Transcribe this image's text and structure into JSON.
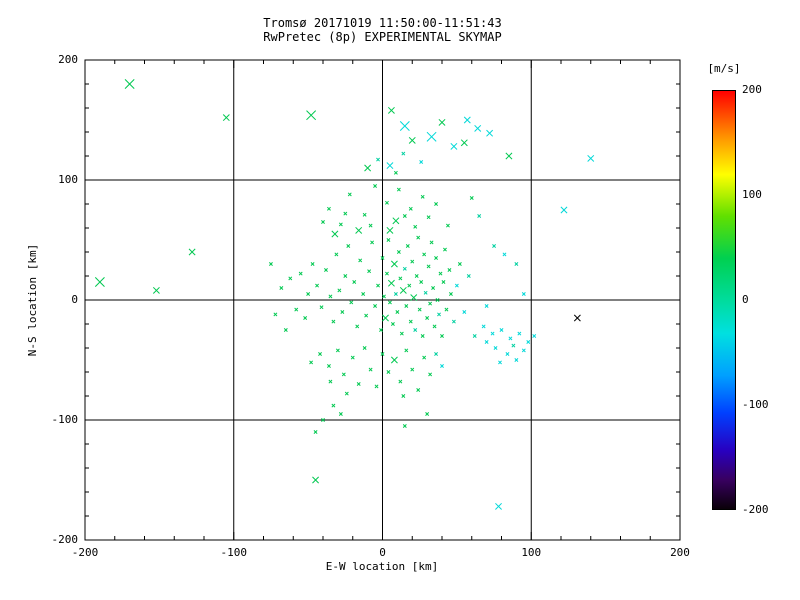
{
  "title": {
    "line1": "Tromsø 20171019 11:50:00-11:51:43",
    "line2": "RwPretec (8p) EXPERIMENTAL SKYMAP"
  },
  "axes": {
    "x": {
      "label": "E-W location [km]",
      "range": [
        -200,
        200
      ],
      "ticks": [
        -200,
        -100,
        0,
        100,
        200
      ],
      "minor_step": 20
    },
    "y": {
      "label": "N-S location [km]",
      "range": [
        -200,
        200
      ],
      "ticks": [
        -200,
        -100,
        0,
        100,
        200
      ],
      "minor_step": 20
    },
    "grid_lines": [
      -100,
      0,
      100
    ]
  },
  "colorbar": {
    "label": "[m/s]",
    "range": [
      -200,
      200
    ],
    "ticks": [
      200,
      100,
      0,
      -100,
      -200
    ],
    "stops": [
      [
        "#ff0000",
        0
      ],
      [
        "#ffa000",
        12
      ],
      [
        "#ffff00",
        20
      ],
      [
        "#60e000",
        30
      ],
      [
        "#00d050",
        40
      ],
      [
        "#00dc9c",
        50
      ],
      [
        "#00e0e0",
        58
      ],
      [
        "#00a0ff",
        68
      ],
      [
        "#0040ff",
        77
      ],
      [
        "#2800c0",
        86
      ],
      [
        "#380060",
        93
      ],
      [
        "#0a0008",
        100
      ]
    ]
  },
  "chart_data": {
    "type": "scatter",
    "marker": "x",
    "title": "Tromsø 20171019 11:50:00-11:51:43",
    "subtitle": "RwPretec (8p) EXPERIMENTAL SKYMAP",
    "xlabel": "E-W location [km]",
    "ylabel": "N-S location [km]",
    "xlim": [
      -200,
      200
    ],
    "ylim": [
      -200,
      200
    ],
    "colorbar_units": "m/s",
    "palette": {
      "g": "#00C850",
      "t": "#00D0A0",
      "c": "#00D8D8",
      "k": "#000000"
    },
    "points": [
      [
        -170,
        180,
        "g",
        3
      ],
      [
        -105,
        152,
        "g",
        2
      ],
      [
        -48,
        154,
        "g",
        3
      ],
      [
        6,
        158,
        "g",
        2
      ],
      [
        15,
        145,
        "c",
        3
      ],
      [
        20,
        133,
        "g",
        2
      ],
      [
        33,
        136,
        "c",
        3
      ],
      [
        40,
        148,
        "g",
        2
      ],
      [
        48,
        128,
        "c",
        2
      ],
      [
        55,
        131,
        "g",
        2
      ],
      [
        57,
        150,
        "c",
        2
      ],
      [
        64,
        143,
        "c",
        2
      ],
      [
        72,
        139,
        "c",
        2
      ],
      [
        85,
        120,
        "g",
        2
      ],
      [
        140,
        118,
        "c",
        2
      ],
      [
        122,
        75,
        "c",
        2
      ],
      [
        -10,
        110,
        "g",
        2
      ],
      [
        -3,
        117,
        "t",
        1
      ],
      [
        5,
        112,
        "c",
        2
      ],
      [
        9,
        106,
        "g",
        1
      ],
      [
        14,
        122,
        "t",
        1
      ],
      [
        26,
        115,
        "c",
        1
      ],
      [
        -190,
        15,
        "g",
        3
      ],
      [
        -152,
        8,
        "g",
        2
      ],
      [
        -128,
        40,
        "g",
        2
      ],
      [
        131,
        -15,
        "k",
        2
      ],
      [
        -45,
        -150,
        "g",
        2
      ],
      [
        78,
        -172,
        "c",
        2
      ],
      [
        -36,
        76,
        "g",
        1
      ],
      [
        -22,
        88,
        "g",
        1
      ],
      [
        -12,
        71,
        "g",
        1
      ],
      [
        -5,
        95,
        "g",
        1
      ],
      [
        3,
        81,
        "g",
        1
      ],
      [
        11,
        92,
        "g",
        1
      ],
      [
        19,
        76,
        "g",
        1
      ],
      [
        27,
        86,
        "g",
        1
      ],
      [
        -28,
        63,
        "g",
        1
      ],
      [
        9,
        66,
        "g",
        2
      ],
      [
        31,
        69,
        "g",
        1
      ],
      [
        -16,
        58,
        "g",
        2
      ],
      [
        -32,
        55,
        "g",
        2
      ],
      [
        22,
        61,
        "g",
        1
      ],
      [
        5,
        58,
        "g",
        2
      ],
      [
        -8,
        62,
        "g",
        1
      ],
      [
        15,
        70,
        "g",
        1
      ],
      [
        -25,
        72,
        "g",
        1
      ],
      [
        36,
        80,
        "g",
        1
      ],
      [
        -40,
        65,
        "g",
        1
      ],
      [
        60,
        85,
        "g",
        1
      ],
      [
        65,
        70,
        "t",
        1
      ],
      [
        44,
        62,
        "g",
        1
      ],
      [
        -44,
        12,
        "g",
        1
      ],
      [
        -41,
        -6,
        "g",
        1
      ],
      [
        -38,
        25,
        "g",
        1
      ],
      [
        -35,
        3,
        "g",
        1
      ],
      [
        -33,
        -18,
        "g",
        1
      ],
      [
        -31,
        38,
        "g",
        1
      ],
      [
        -29,
        8,
        "g",
        1
      ],
      [
        -27,
        -10,
        "g",
        1
      ],
      [
        -25,
        20,
        "g",
        1
      ],
      [
        -23,
        45,
        "g",
        1
      ],
      [
        -21,
        -2,
        "g",
        1
      ],
      [
        -19,
        15,
        "g",
        1
      ],
      [
        -17,
        -22,
        "g",
        1
      ],
      [
        -15,
        33,
        "g",
        1
      ],
      [
        -13,
        5,
        "g",
        1
      ],
      [
        -11,
        -13,
        "g",
        1
      ],
      [
        -9,
        24,
        "g",
        1
      ],
      [
        -7,
        48,
        "g",
        1
      ],
      [
        -5,
        -5,
        "g",
        1
      ],
      [
        -3,
        12,
        "g",
        1
      ],
      [
        -1,
        -25,
        "g",
        1
      ],
      [
        0,
        35,
        "g",
        1
      ],
      [
        1,
        3,
        "g",
        1
      ],
      [
        2,
        -15,
        "g",
        2
      ],
      [
        3,
        22,
        "g",
        1
      ],
      [
        4,
        50,
        "g",
        1
      ],
      [
        5,
        -2,
        "g",
        1
      ],
      [
        6,
        14,
        "g",
        2
      ],
      [
        7,
        -20,
        "g",
        1
      ],
      [
        8,
        30,
        "g",
        2
      ],
      [
        9,
        5,
        "t",
        1
      ],
      [
        10,
        -10,
        "g",
        1
      ],
      [
        11,
        40,
        "g",
        1
      ],
      [
        12,
        18,
        "g",
        1
      ],
      [
        13,
        -28,
        "g",
        1
      ],
      [
        14,
        8,
        "g",
        2
      ],
      [
        15,
        26,
        "t",
        1
      ],
      [
        16,
        -5,
        "g",
        1
      ],
      [
        17,
        45,
        "g",
        1
      ],
      [
        18,
        12,
        "g",
        1
      ],
      [
        19,
        -18,
        "g",
        1
      ],
      [
        20,
        32,
        "g",
        1
      ],
      [
        21,
        2,
        "g",
        2
      ],
      [
        22,
        -25,
        "t",
        1
      ],
      [
        23,
        20,
        "g",
        1
      ],
      [
        24,
        52,
        "g",
        1
      ],
      [
        25,
        -8,
        "g",
        1
      ],
      [
        26,
        15,
        "g",
        1
      ],
      [
        27,
        -30,
        "g",
        1
      ],
      [
        28,
        38,
        "g",
        1
      ],
      [
        29,
        6,
        "t",
        1
      ],
      [
        30,
        -15,
        "g",
        1
      ],
      [
        31,
        28,
        "g",
        1
      ],
      [
        32,
        -3,
        "g",
        1
      ],
      [
        33,
        48,
        "g",
        1
      ],
      [
        34,
        10,
        "g",
        1
      ],
      [
        35,
        -22,
        "g",
        1
      ],
      [
        36,
        35,
        "g",
        1
      ],
      [
        37,
        0,
        "g",
        1
      ],
      [
        38,
        -12,
        "t",
        1
      ],
      [
        39,
        22,
        "g",
        1
      ],
      [
        40,
        -30,
        "g",
        1
      ],
      [
        41,
        15,
        "g",
        1
      ],
      [
        42,
        42,
        "g",
        1
      ],
      [
        43,
        -8,
        "g",
        1
      ],
      [
        45,
        25,
        "g",
        1
      ],
      [
        46,
        5,
        "g",
        1
      ],
      [
        48,
        -18,
        "t",
        1
      ],
      [
        50,
        12,
        "c",
        1
      ],
      [
        52,
        30,
        "g",
        1
      ],
      [
        55,
        -10,
        "c",
        1
      ],
      [
        58,
        20,
        "t",
        1
      ],
      [
        -47,
        30,
        "g",
        1
      ],
      [
        -50,
        5,
        "g",
        1
      ],
      [
        -52,
        -15,
        "g",
        1
      ],
      [
        -55,
        22,
        "g",
        1
      ],
      [
        -58,
        -8,
        "g",
        1
      ],
      [
        -62,
        18,
        "g",
        1
      ],
      [
        -65,
        -25,
        "g",
        1
      ],
      [
        -68,
        10,
        "g",
        1
      ],
      [
        -72,
        -12,
        "g",
        1
      ],
      [
        -75,
        30,
        "g",
        1
      ],
      [
        -42,
        -45,
        "g",
        1
      ],
      [
        -36,
        -55,
        "g",
        1
      ],
      [
        -30,
        -42,
        "g",
        1
      ],
      [
        -26,
        -62,
        "g",
        1
      ],
      [
        -20,
        -48,
        "g",
        1
      ],
      [
        -16,
        -70,
        "g",
        1
      ],
      [
        -12,
        -40,
        "g",
        1
      ],
      [
        -8,
        -58,
        "g",
        1
      ],
      [
        -4,
        -72,
        "g",
        1
      ],
      [
        0,
        -45,
        "g",
        1
      ],
      [
        4,
        -60,
        "g",
        1
      ],
      [
        8,
        -50,
        "g",
        2
      ],
      [
        12,
        -68,
        "g",
        1
      ],
      [
        16,
        -42,
        "g",
        1
      ],
      [
        20,
        -58,
        "g",
        1
      ],
      [
        24,
        -75,
        "g",
        1
      ],
      [
        28,
        -48,
        "g",
        1
      ],
      [
        32,
        -62,
        "g",
        1
      ],
      [
        -24,
        -78,
        "g",
        1
      ],
      [
        14,
        -80,
        "g",
        1
      ],
      [
        -35,
        -68,
        "g",
        1
      ],
      [
        36,
        -45,
        "t",
        1
      ],
      [
        -48,
        -52,
        "g",
        1
      ],
      [
        40,
        -55,
        "c",
        1
      ],
      [
        -40,
        -100,
        "g",
        1
      ],
      [
        -28,
        -95,
        "g",
        1
      ],
      [
        -45,
        -110,
        "g",
        1
      ],
      [
        15,
        -105,
        "g",
        1
      ],
      [
        30,
        -95,
        "g",
        1
      ],
      [
        -33,
        -88,
        "g",
        1
      ],
      [
        68,
        -22,
        "c",
        1
      ],
      [
        74,
        -28,
        "c",
        1
      ],
      [
        80,
        -25,
        "c",
        1
      ],
      [
        86,
        -32,
        "c",
        1
      ],
      [
        92,
        -28,
        "c",
        1
      ],
      [
        98,
        -35,
        "c",
        1
      ],
      [
        76,
        -40,
        "c",
        1
      ],
      [
        84,
        -45,
        "c",
        1
      ],
      [
        90,
        -50,
        "c",
        1
      ],
      [
        70,
        -35,
        "c",
        1
      ],
      [
        95,
        -42,
        "c",
        1
      ],
      [
        102,
        -30,
        "c",
        1
      ],
      [
        88,
        -38,
        "t",
        1
      ],
      [
        79,
        -52,
        "c",
        1
      ],
      [
        75,
        45,
        "t",
        1
      ],
      [
        82,
        38,
        "c",
        1
      ],
      [
        90,
        30,
        "t",
        1
      ],
      [
        95,
        5,
        "c",
        1
      ],
      [
        70,
        -5,
        "c",
        1
      ],
      [
        62,
        -30,
        "t",
        1
      ]
    ]
  }
}
